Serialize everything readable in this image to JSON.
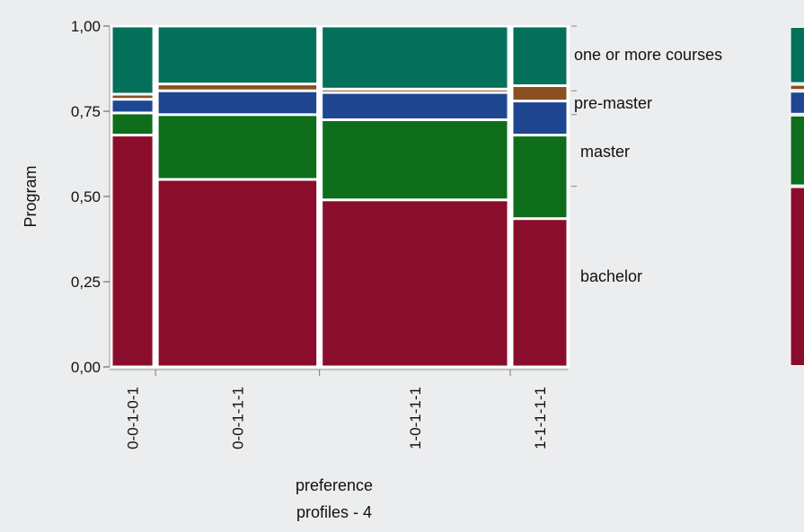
{
  "chart_data": {
    "type": "mosaic",
    "ylabel": "Program",
    "xlabel": [
      "preference",
      "profiles - 4"
    ],
    "ylim": [
      0,
      1
    ],
    "yticks": [
      "0,00",
      "0,25",
      "0,50",
      "0,75",
      "1,00"
    ],
    "ytick_values": [
      0,
      0.25,
      0.5,
      0.75,
      1.0
    ],
    "categories": [
      "0-0-1-0-1",
      "0-0-1-1-1",
      "1-0-1-1-1",
      "1-1-1-1-1"
    ],
    "column_widths": [
      0.095,
      0.36,
      0.42,
      0.125
    ],
    "series": [
      {
        "name": "bachelor",
        "color": "#8a0e2b",
        "values": [
          0.68,
          0.55,
          0.49,
          0.435
        ]
      },
      {
        "name": "master",
        "color": "#0e6e1c",
        "values": [
          0.065,
          0.19,
          0.235,
          0.245
        ]
      },
      {
        "name": "pre-master",
        "color": "#1f4690",
        "values": [
          0.04,
          0.07,
          0.08,
          0.1
        ]
      },
      {
        "name": "",
        "color": "#8a5020",
        "values": [
          0.015,
          0.02,
          0.01,
          0.045
        ]
      },
      {
        "name": "one or more courses",
        "color": "#05705a",
        "values": [
          0.2,
          0.17,
          0.185,
          0.175
        ]
      }
    ],
    "legend_labels": [
      "one or more courses",
      "pre-master",
      "master",
      "bachelor"
    ],
    "overall": [
      0.53,
      0.21,
      0.07,
      0.02,
      0.17
    ],
    "grid": false
  }
}
